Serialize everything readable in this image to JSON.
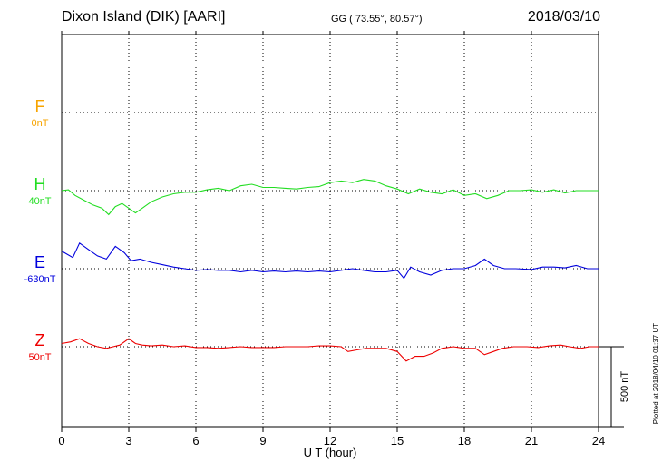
{
  "header": {
    "title": "Dixon Island (DIK)  [AARI]",
    "coords": "GG ( 73.55°,  80.57°)",
    "date": "2018/03/10"
  },
  "footer": {
    "plotted": "Plotted at 2018/04/10 01:37 UT",
    "scale_bar_label": "500 nT"
  },
  "chart_data": {
    "type": "line",
    "xlabel": "U T (hour)",
    "xlim": [
      0,
      24
    ],
    "xticks": [
      0,
      3,
      6,
      9,
      12,
      15,
      18,
      21,
      24
    ],
    "scale_nT": 500,
    "grid": true,
    "series": [
      {
        "name": "F",
        "baseline": "0nT",
        "color": "#f7a400",
        "points": []
      },
      {
        "name": "H",
        "baseline": "40nT",
        "color": "#22dd22",
        "points": [
          [
            0,
            0
          ],
          [
            0.3,
            5
          ],
          [
            0.6,
            -30
          ],
          [
            1.0,
            -60
          ],
          [
            1.4,
            -90
          ],
          [
            1.8,
            -110
          ],
          [
            2.1,
            -150
          ],
          [
            2.4,
            -100
          ],
          [
            2.7,
            -80
          ],
          [
            3.0,
            -110
          ],
          [
            3.3,
            -140
          ],
          [
            3.6,
            -110
          ],
          [
            4.0,
            -70
          ],
          [
            4.5,
            -40
          ],
          [
            5.0,
            -20
          ],
          [
            5.5,
            -10
          ],
          [
            6.0,
            -10
          ],
          [
            6.5,
            5
          ],
          [
            7.0,
            15
          ],
          [
            7.5,
            0
          ],
          [
            8.0,
            30
          ],
          [
            8.5,
            40
          ],
          [
            9.0,
            20
          ],
          [
            9.5,
            20
          ],
          [
            10.0,
            15
          ],
          [
            10.5,
            10
          ],
          [
            11.0,
            20
          ],
          [
            11.5,
            25
          ],
          [
            12.0,
            50
          ],
          [
            12.5,
            60
          ],
          [
            13.0,
            50
          ],
          [
            13.5,
            70
          ],
          [
            14.0,
            60
          ],
          [
            14.5,
            30
          ],
          [
            15.0,
            10
          ],
          [
            15.5,
            -20
          ],
          [
            16.0,
            10
          ],
          [
            16.5,
            -10
          ],
          [
            17.0,
            -20
          ],
          [
            17.5,
            5
          ],
          [
            18.0,
            -30
          ],
          [
            18.5,
            -20
          ],
          [
            19.0,
            -50
          ],
          [
            19.5,
            -30
          ],
          [
            20.0,
            0
          ],
          [
            20.5,
            0
          ],
          [
            21.0,
            5
          ],
          [
            21.5,
            -10
          ],
          [
            22.0,
            5
          ],
          [
            22.5,
            -15
          ],
          [
            23.0,
            0
          ],
          [
            23.5,
            0
          ],
          [
            24.0,
            0
          ]
        ]
      },
      {
        "name": "E",
        "baseline": "-630nT",
        "color": "#0000dd",
        "points": [
          [
            0,
            110
          ],
          [
            0.5,
            70
          ],
          [
            0.8,
            160
          ],
          [
            1.2,
            120
          ],
          [
            1.6,
            80
          ],
          [
            2.0,
            60
          ],
          [
            2.4,
            140
          ],
          [
            2.8,
            100
          ],
          [
            3.1,
            50
          ],
          [
            3.5,
            60
          ],
          [
            4.0,
            40
          ],
          [
            4.5,
            25
          ],
          [
            5.0,
            10
          ],
          [
            5.5,
            0
          ],
          [
            6.0,
            -10
          ],
          [
            6.5,
            -5
          ],
          [
            7.0,
            -10
          ],
          [
            7.5,
            -10
          ],
          [
            8.0,
            -20
          ],
          [
            8.5,
            -10
          ],
          [
            9.0,
            -20
          ],
          [
            9.5,
            -15
          ],
          [
            10.0,
            -20
          ],
          [
            10.5,
            -15
          ],
          [
            11.0,
            -20
          ],
          [
            11.5,
            -15
          ],
          [
            12.0,
            -20
          ],
          [
            12.5,
            -10
          ],
          [
            13.0,
            0
          ],
          [
            13.5,
            -10
          ],
          [
            14.0,
            -20
          ],
          [
            14.5,
            -20
          ],
          [
            15.0,
            -10
          ],
          [
            15.3,
            -60
          ],
          [
            15.6,
            10
          ],
          [
            16.0,
            -20
          ],
          [
            16.5,
            -40
          ],
          [
            17.0,
            -10
          ],
          [
            17.5,
            0
          ],
          [
            18.0,
            0
          ],
          [
            18.5,
            20
          ],
          [
            18.9,
            60
          ],
          [
            19.3,
            20
          ],
          [
            19.8,
            0
          ],
          [
            20.3,
            0
          ],
          [
            21.0,
            -5
          ],
          [
            21.5,
            10
          ],
          [
            22.0,
            10
          ],
          [
            22.5,
            5
          ],
          [
            23.0,
            20
          ],
          [
            23.5,
            0
          ],
          [
            24.0,
            0
          ]
        ]
      },
      {
        "name": "Z",
        "baseline": "50nT",
        "color": "#ee0000",
        "points": [
          [
            0,
            20
          ],
          [
            0.4,
            30
          ],
          [
            0.8,
            50
          ],
          [
            1.2,
            20
          ],
          [
            1.6,
            0
          ],
          [
            2.0,
            -10
          ],
          [
            2.3,
            0
          ],
          [
            2.6,
            10
          ],
          [
            3.0,
            50
          ],
          [
            3.3,
            20
          ],
          [
            3.6,
            10
          ],
          [
            4.0,
            5
          ],
          [
            4.5,
            10
          ],
          [
            5.0,
            0
          ],
          [
            5.5,
            5
          ],
          [
            6.0,
            -5
          ],
          [
            6.5,
            -5
          ],
          [
            7.0,
            -10
          ],
          [
            7.5,
            -5
          ],
          [
            8.0,
            0
          ],
          [
            8.5,
            -5
          ],
          [
            9.0,
            -5
          ],
          [
            9.5,
            -5
          ],
          [
            10.0,
            0
          ],
          [
            10.5,
            0
          ],
          [
            11.0,
            0
          ],
          [
            11.5,
            5
          ],
          [
            12.0,
            5
          ],
          [
            12.5,
            0
          ],
          [
            12.8,
            -30
          ],
          [
            13.2,
            -20
          ],
          [
            13.6,
            -10
          ],
          [
            14.0,
            -10
          ],
          [
            14.5,
            -10
          ],
          [
            15.0,
            -30
          ],
          [
            15.4,
            -90
          ],
          [
            15.8,
            -60
          ],
          [
            16.2,
            -60
          ],
          [
            16.6,
            -40
          ],
          [
            17.0,
            -10
          ],
          [
            17.5,
            0
          ],
          [
            18.0,
            -10
          ],
          [
            18.5,
            -10
          ],
          [
            18.9,
            -50
          ],
          [
            19.3,
            -30
          ],
          [
            19.7,
            -10
          ],
          [
            20.2,
            0
          ],
          [
            20.8,
            0
          ],
          [
            21.3,
            -5
          ],
          [
            21.8,
            5
          ],
          [
            22.3,
            10
          ],
          [
            22.7,
            0
          ],
          [
            23.2,
            -10
          ],
          [
            23.6,
            0
          ],
          [
            24.0,
            0
          ]
        ]
      }
    ]
  }
}
